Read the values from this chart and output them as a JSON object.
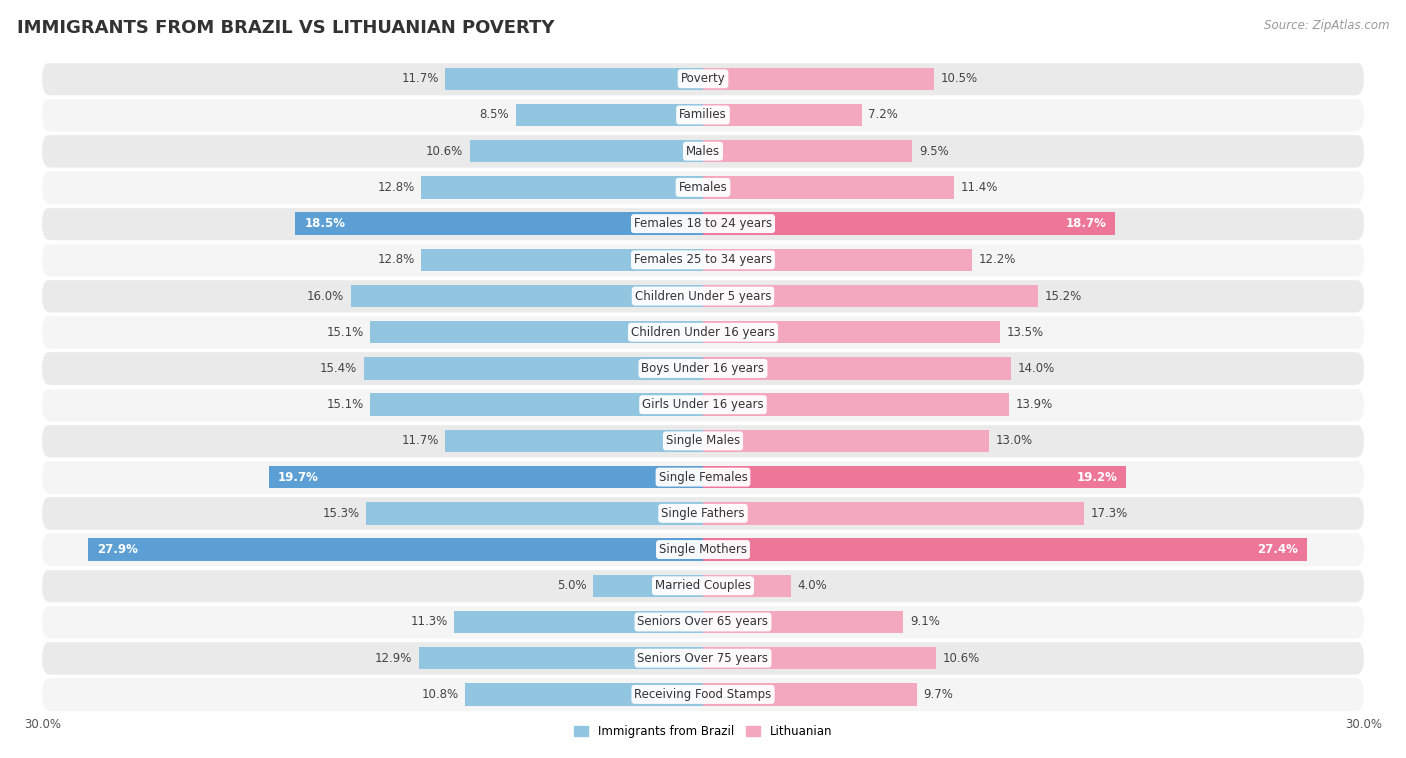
{
  "title": "IMMIGRANTS FROM BRAZIL VS LITHUANIAN POVERTY",
  "source": "Source: ZipAtlas.com",
  "categories": [
    "Poverty",
    "Families",
    "Males",
    "Females",
    "Females 18 to 24 years",
    "Females 25 to 34 years",
    "Children Under 5 years",
    "Children Under 16 years",
    "Boys Under 16 years",
    "Girls Under 16 years",
    "Single Males",
    "Single Females",
    "Single Fathers",
    "Single Mothers",
    "Married Couples",
    "Seniors Over 65 years",
    "Seniors Over 75 years",
    "Receiving Food Stamps"
  ],
  "brazil_values": [
    11.7,
    8.5,
    10.6,
    12.8,
    18.5,
    12.8,
    16.0,
    15.1,
    15.4,
    15.1,
    11.7,
    19.7,
    15.3,
    27.9,
    5.0,
    11.3,
    12.9,
    10.8
  ],
  "lithuanian_values": [
    10.5,
    7.2,
    9.5,
    11.4,
    18.7,
    12.2,
    15.2,
    13.5,
    14.0,
    13.9,
    13.0,
    19.2,
    17.3,
    27.4,
    4.0,
    9.1,
    10.6,
    9.7
  ],
  "brazil_color": "#92C5E0",
  "lithuanian_color": "#F4A8BE",
  "brazil_highlight_color": "#5B9FD4",
  "lithuanian_highlight_color": "#EE7699",
  "highlight_rows": [
    4,
    11,
    13
  ],
  "background_color": "#ffffff",
  "row_even_color": "#EAEAEA",
  "row_odd_color": "#F5F5F5",
  "axis_max": 30.0,
  "legend_label_brazil": "Immigrants from Brazil",
  "legend_label_lithuanian": "Lithuanian",
  "title_fontsize": 13,
  "category_fontsize": 8.5,
  "value_fontsize": 8.5,
  "source_fontsize": 8.5
}
